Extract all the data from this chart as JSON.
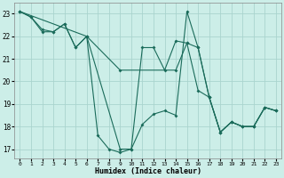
{
  "xlabel": "Humidex (Indice chaleur)",
  "bg_color": "#cceee8",
  "grid_color": "#aad4ce",
  "line_color": "#1a6b5a",
  "xlim": [
    -0.5,
    23.5
  ],
  "ylim": [
    16.6,
    23.5
  ],
  "yticks": [
    17,
    18,
    19,
    20,
    21,
    22,
    23
  ],
  "xticks": [
    0,
    1,
    2,
    3,
    4,
    5,
    6,
    7,
    8,
    9,
    10,
    11,
    12,
    13,
    14,
    15,
    16,
    17,
    18,
    19,
    20,
    21,
    22,
    23
  ],
  "lines": [
    {
      "x": [
        0,
        1,
        2,
        3,
        4,
        5,
        6,
        7,
        8,
        9,
        10,
        11,
        12,
        13,
        14,
        15,
        16,
        17,
        18,
        19,
        20,
        21,
        22,
        23
      ],
      "y": [
        23.1,
        22.85,
        22.2,
        22.2,
        22.55,
        21.5,
        22.0,
        17.6,
        17.0,
        16.85,
        17.0,
        18.1,
        18.55,
        18.7,
        18.5,
        23.1,
        21.5,
        19.3,
        17.75,
        18.2,
        18.0,
        18.0,
        18.85,
        18.7
      ]
    },
    {
      "x": [
        0,
        1,
        2,
        3,
        4,
        5,
        6,
        9,
        10,
        11,
        12,
        13,
        14,
        15,
        16,
        17,
        18,
        19,
        20,
        21,
        22,
        23
      ],
      "y": [
        23.1,
        22.85,
        22.3,
        22.2,
        22.55,
        21.5,
        22.0,
        17.0,
        17.0,
        21.5,
        21.5,
        20.5,
        21.8,
        21.7,
        19.6,
        19.3,
        17.75,
        18.2,
        18.0,
        18.0,
        18.85,
        18.7
      ]
    },
    {
      "x": [
        0,
        6,
        9,
        14,
        15,
        16,
        17,
        18,
        19,
        20,
        21,
        22,
        23
      ],
      "y": [
        23.1,
        22.0,
        20.5,
        20.5,
        21.7,
        21.5,
        19.3,
        17.75,
        18.2,
        18.0,
        18.0,
        18.85,
        18.7
      ]
    }
  ]
}
